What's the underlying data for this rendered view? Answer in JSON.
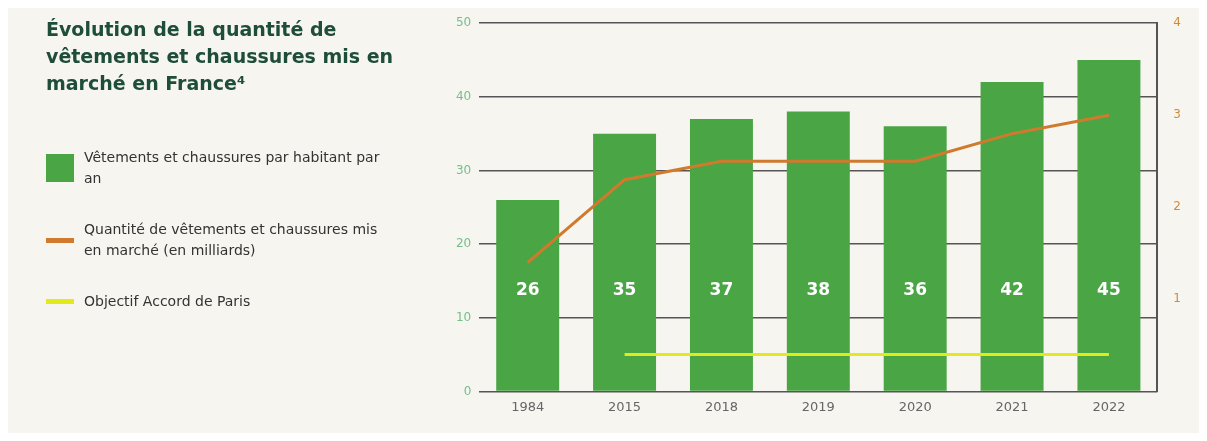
{
  "chart_data": {
    "type": "bar",
    "title": "Évolution de la quantité de vêtements et chaussures mis en marché en France⁴",
    "categories": [
      "1984",
      "2015",
      "2018",
      "2019",
      "2020",
      "2021",
      "2022"
    ],
    "series": [
      {
        "name": "Vêtements et chaussures par habitant par an",
        "color": "#4aa544",
        "values": [
          26,
          35,
          37,
          38,
          36,
          42,
          45
        ],
        "value_labels": [
          "26",
          "35",
          "37",
          "38",
          "36",
          "42",
          "45"
        ]
      },
      {
        "name": "Quantité de vêtements et chaussures mis en marché (en milliards)",
        "type": "line",
        "axis": "y2",
        "color": "#d07a2e",
        "values": [
          1.4,
          2.3,
          2.5,
          2.5,
          2.5,
          2.8,
          3.0
        ]
      },
      {
        "name": "Objectif Accord de Paris",
        "type": "line",
        "color": "#e2ea1c",
        "values": [
          null,
          5,
          5,
          5,
          5,
          5,
          5
        ]
      }
    ],
    "ylim": [
      0,
      50
    ],
    "yticks": [
      0,
      10,
      20,
      30,
      40,
      50
    ],
    "y2lim": [
      0,
      4
    ],
    "y2ticks": [
      1,
      2,
      3,
      4
    ],
    "grid": "y",
    "legend": "left",
    "marker": "none"
  }
}
